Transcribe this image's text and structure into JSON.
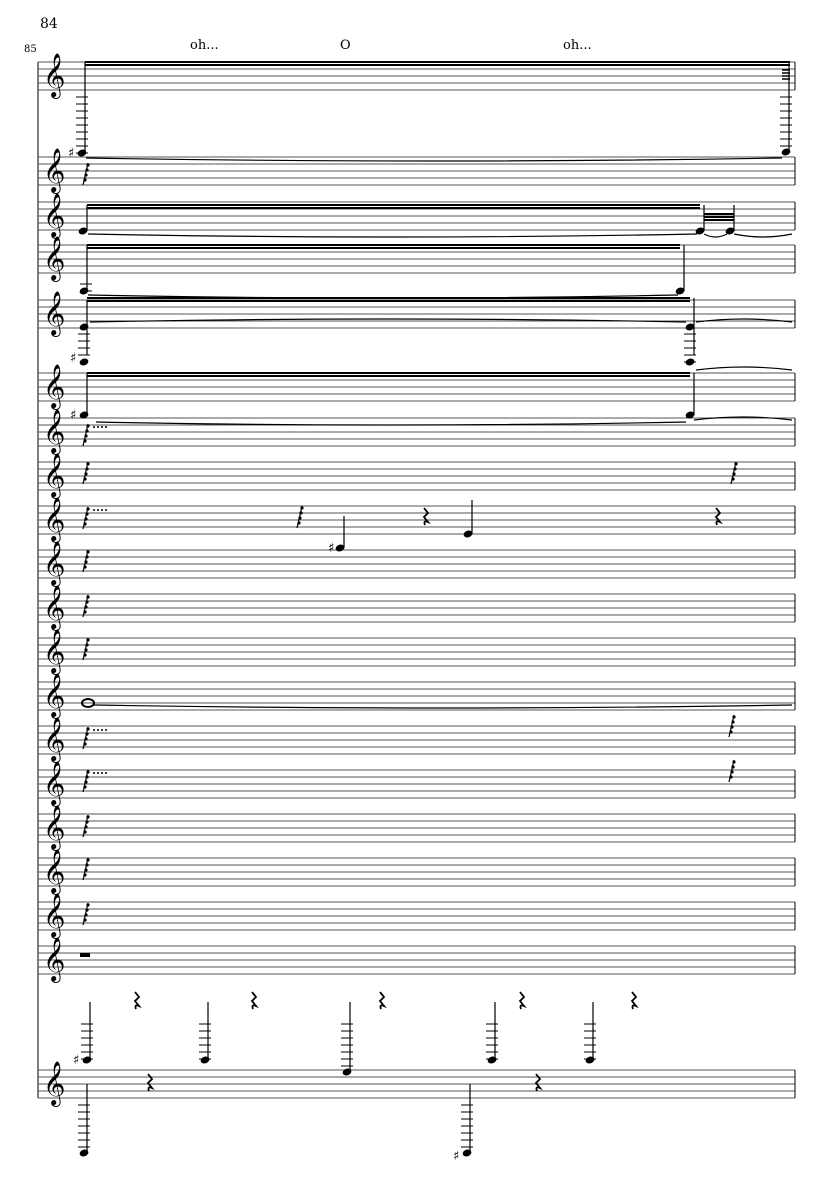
{
  "score": {
    "measure_numbers": [
      "84",
      "85"
    ],
    "lyrics": [
      "oh...",
      "O",
      "oh..."
    ],
    "clef": "treble-clef",
    "ink_color": "#000000",
    "staff_line_color": "#555555"
  }
}
